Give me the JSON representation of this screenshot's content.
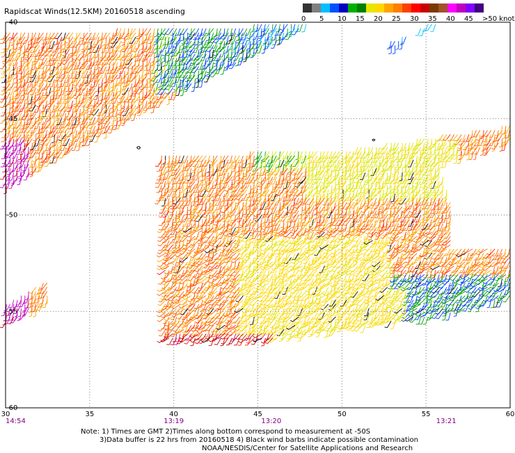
{
  "title": "Rapidscat Winds(12.5KM) 20160518 ascending",
  "legend": {
    "labels": [
      "0",
      "5",
      "10",
      "15",
      "20",
      "25",
      "30",
      "35",
      "40",
      "45",
      ">50 knots"
    ],
    "colors": [
      "#333333",
      "#808080",
      "#00bfff",
      "#0050ff",
      "#0000c0",
      "#00b000",
      "#008000",
      "#e6e600",
      "#ffd700",
      "#ffa500",
      "#ff7f00",
      "#ff4000",
      "#ff0000",
      "#c80000",
      "#7a3b00",
      "#a0522d",
      "#ff00ff",
      "#c000c0",
      "#8000ff",
      "#400080"
    ]
  },
  "axes": {
    "lon_ticks": [
      "30",
      "35",
      "40",
      "45",
      "50",
      "55",
      "60"
    ],
    "lat_ticks": [
      "-40",
      "-45",
      "-50",
      "-55",
      "-60"
    ],
    "lon_range": [
      30,
      60
    ],
    "lat_range": [
      -40,
      -60
    ]
  },
  "times": [
    {
      "lon": 30,
      "label": "14:54"
    },
    {
      "lon": 40,
      "label": "13:19"
    },
    {
      "lon": 45.8,
      "label": "13:20"
    },
    {
      "lon": 56.2,
      "label": "13:21"
    }
  ],
  "notes": {
    "line1": "Note: 1) Times are GMT 2)Times along bottom correspond to measurement at -50S",
    "line2": "3)Data buffer is 22 hrs from 20160518 4) Black wind barbs indicate possible contamination",
    "line3": "NOAA/NESDIS/Center for Satellite Applications and Research"
  }
}
